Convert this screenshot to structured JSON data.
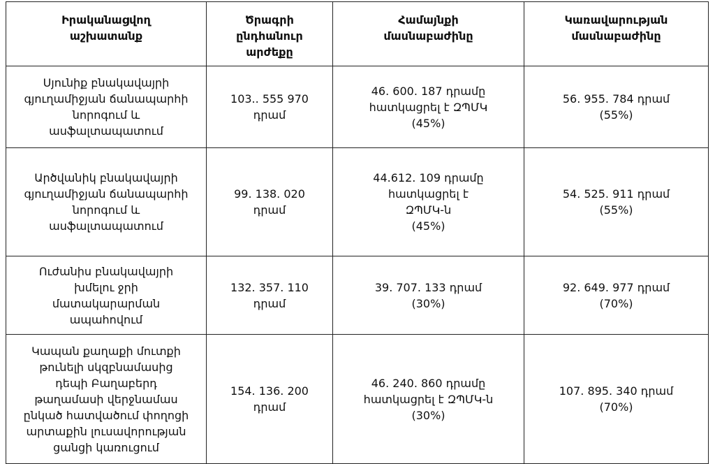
{
  "table": {
    "header": [
      [
        "Իրականացվող",
        "աշխատանք"
      ],
      [
        "Ծրագրի",
        "ընդհանուր",
        "արժեքը"
      ],
      [
        "Համայնքի",
        "մասնաբաժինը"
      ],
      [
        "Կառավարության",
        "մասնաբաժինը"
      ]
    ],
    "rows": [
      [
        [
          "Սյունիք բնակավայրի",
          "գյուղամիջյան ճանապարհի",
          "նորոգում և",
          "ասֆալտապատում"
        ],
        [
          "103.. 555 970",
          "դրամ"
        ],
        [
          "46. 600. 187 դրամը",
          "հատկացրել է ԶՊՄԿ",
          "(45%)"
        ],
        [
          "56. 955. 784 դրամ",
          "(55%)"
        ]
      ],
      [
        [
          "Արծվանիկ բնակավայրի",
          "գյուղամիջյան ճանապարհի",
          "նորոգում և",
          "ասֆալտապատում"
        ],
        [
          "99. 138. 020",
          "դրամ"
        ],
        [
          "44.612. 109 դրամը",
          "հատկացրել է",
          "ԶՊՄԿ-ն",
          "(45%)"
        ],
        [
          "54. 525. 911 դրամ",
          "(55%)"
        ]
      ],
      [
        [
          "Ուժանիս բնակավայրի",
          "խմելու ջրի",
          "մատակարարման",
          "ապահովում"
        ],
        [
          "132. 357. 110",
          "դրամ"
        ],
        [
          "39. 707. 133 դրամ",
          "(30%)"
        ],
        [
          "92. 649. 977 դրամ",
          "(70%)"
        ]
      ],
      [
        [
          "Կապան քաղաքի մուտքի",
          "թունելի սկզբնամասից",
          "դեպի Բաղաբերդ",
          "թաղամասի վերջնամաս",
          "ընկած հատվածում փողոցի",
          "արտաքին լուսավորության",
          "ցանցի կառուցում"
        ],
        [
          "154. 136. 200",
          "դրամ"
        ],
        [
          "46. 240. 860 դրամը",
          "հատկացրել է ԶՊՄԿ-ն",
          "(30%)"
        ],
        [
          "107. 895. 340 դրամ",
          "(70%)"
        ]
      ]
    ]
  }
}
